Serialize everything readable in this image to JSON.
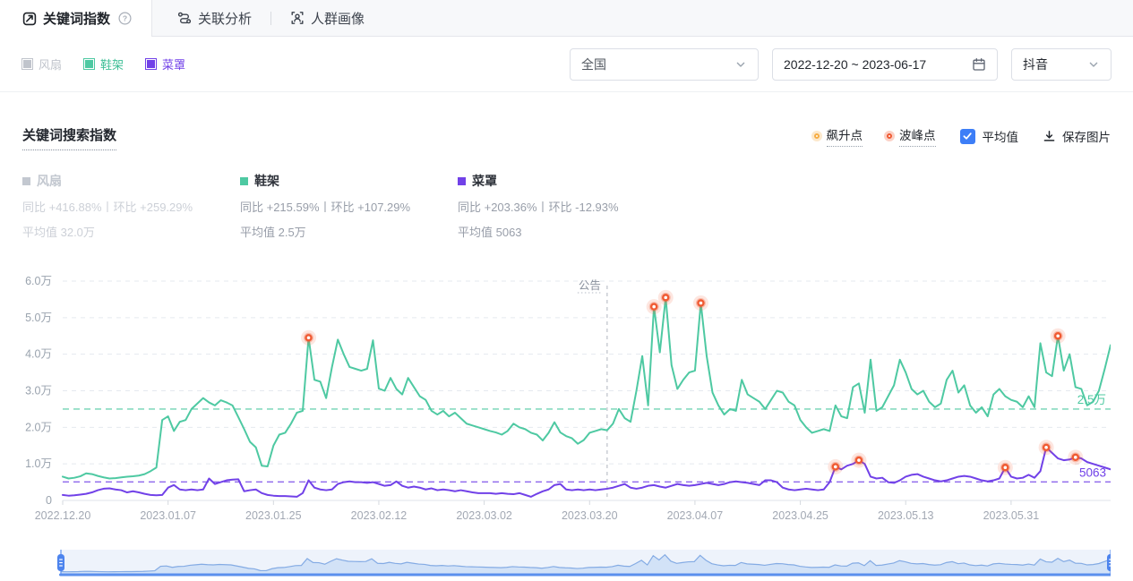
{
  "tabs": [
    {
      "label": "关键词指数",
      "icon": "trend-icon",
      "active": true,
      "has_help": true
    },
    {
      "label": "关联分析",
      "icon": "link-analysis-icon",
      "active": false
    },
    {
      "label": "人群画像",
      "icon": "audience-portrait-icon",
      "active": false
    }
  ],
  "filters": {
    "keywords": [
      {
        "label": "风扇",
        "swatch_color": "#c0c4cc",
        "text_color": "#c0c4cc",
        "disabled": true
      },
      {
        "label": "鞋架",
        "swatch_color": "#4ec9a2",
        "text_color": "#3fbf97",
        "disabled": false
      },
      {
        "label": "菜罩",
        "swatch_color": "#7141e8",
        "text_color": "#7141e8",
        "disabled": false
      }
    ],
    "region_select": {
      "value": "全国",
      "icon": "chevron-down-icon"
    },
    "date_range": {
      "value": "2022-12-20 ~ 2023-06-17",
      "icon": "calendar-icon"
    },
    "platform_select": {
      "value": "抖音",
      "icon": "chevron-down-icon"
    }
  },
  "chart_header": {
    "title": "关键词搜索指数",
    "surge_point_label": "飙升点",
    "peak_point_label": "波峰点",
    "average_label": "平均值",
    "average_checked": true,
    "save_image_label": "保存图片"
  },
  "stats": [
    {
      "name": "风扇",
      "compare": "同比 +416.88%丨环比 +259.29%",
      "avg": "平均值 32.0万",
      "color": "#c3c8d0",
      "line_color": "#ccd0d7",
      "muted": true
    },
    {
      "name": "鞋架",
      "compare": "同比 +215.59%丨环比 +107.29%",
      "avg": "平均值 2.5万",
      "color": "#4ec9a2",
      "name_color": "#2f333b",
      "line_color": "#989ea9",
      "muted": false
    },
    {
      "name": "菜罩",
      "compare": "同比 +203.36%丨环比 -12.93%",
      "avg": "平均值 5063",
      "color": "#7141e8",
      "name_color": "#2f333b",
      "line_color": "#989ea9",
      "muted": false
    }
  ],
  "chart_data": {
    "type": "line",
    "title": "关键词搜索指数",
    "unit": "万",
    "ylim": [
      0,
      6
    ],
    "grid": true,
    "legend_position": "top-right",
    "y_ticks": [
      "0",
      "1.0万",
      "2.0万",
      "3.0万",
      "4.0万",
      "5.0万",
      "6.0万"
    ],
    "x_tick_labels": [
      "2022.12.20",
      "2023.01.07",
      "2023.01.25",
      "2023.02.12",
      "2023.03.02",
      "2023.03.20",
      "2023.04.07",
      "2023.04.25",
      "2023.05.13",
      "2023.05.31"
    ],
    "x_tick_days": [
      0,
      18,
      36,
      54,
      72,
      90,
      108,
      126,
      144,
      162
    ],
    "start_date": "2022-12-20",
    "end_date": "2023-06-17",
    "days_total": 180,
    "annotation": {
      "label": "公告",
      "day": 93
    },
    "marker_colors": {
      "surge": "#f6ad44",
      "peak": "#f05a32"
    },
    "series": [
      {
        "name": "鞋架",
        "color": "#4ec9a2",
        "visible": true,
        "average": 2.5,
        "average_label": "2.5万",
        "surge_days": [],
        "peak_days": [
          42,
          101,
          103,
          109,
          170
        ],
        "values": [
          0.65,
          0.6,
          0.62,
          0.66,
          0.74,
          0.72,
          0.67,
          0.63,
          0.6,
          0.61,
          0.63,
          0.65,
          0.66,
          0.68,
          0.72,
          0.8,
          0.9,
          2.2,
          2.3,
          1.9,
          2.15,
          2.2,
          2.5,
          2.65,
          2.8,
          2.68,
          2.6,
          2.74,
          2.68,
          2.6,
          2.28,
          1.95,
          1.6,
          1.45,
          0.95,
          0.93,
          1.5,
          1.8,
          1.85,
          2.1,
          2.4,
          2.45,
          4.45,
          3.3,
          3.25,
          2.8,
          3.65,
          4.4,
          4.0,
          3.65,
          3.6,
          3.55,
          3.6,
          4.38,
          3.06,
          3.0,
          3.35,
          3.05,
          2.9,
          3.35,
          3.1,
          2.85,
          2.75,
          2.45,
          2.35,
          2.45,
          2.3,
          2.4,
          2.25,
          2.1,
          2.05,
          2.0,
          1.95,
          1.9,
          1.86,
          1.8,
          1.9,
          2.1,
          2.0,
          1.95,
          1.85,
          1.8,
          1.64,
          1.85,
          2.14,
          1.86,
          1.76,
          1.7,
          1.55,
          1.65,
          1.85,
          1.9,
          1.95,
          1.92,
          2.1,
          2.5,
          2.25,
          2.15,
          3.0,
          3.95,
          2.6,
          5.3,
          4.05,
          5.55,
          3.7,
          3.05,
          3.3,
          3.5,
          3.55,
          5.4,
          3.95,
          2.95,
          2.6,
          2.35,
          2.5,
          2.45,
          3.3,
          2.9,
          2.8,
          2.7,
          2.5,
          2.75,
          3.0,
          2.95,
          2.7,
          2.6,
          2.2,
          2.0,
          1.85,
          1.9,
          1.95,
          1.9,
          2.6,
          2.3,
          2.25,
          3.1,
          3.2,
          2.4,
          3.85,
          2.45,
          2.55,
          2.85,
          3.15,
          3.85,
          3.5,
          3.05,
          2.9,
          3.0,
          2.7,
          2.55,
          2.65,
          3.3,
          3.55,
          2.95,
          3.15,
          2.6,
          2.4,
          2.55,
          2.3,
          2.9,
          3.05,
          2.85,
          2.75,
          2.7,
          2.55,
          2.85,
          2.55,
          4.3,
          3.5,
          3.4,
          4.5,
          3.55,
          4.0,
          3.1,
          3.05,
          2.6,
          2.7,
          3.0,
          3.6,
          4.25
        ]
      },
      {
        "name": "菜罩",
        "color": "#7141e8",
        "visible": true,
        "average": 0.5063,
        "average_label": "5063",
        "surge_days": [],
        "peak_days": [
          132,
          136,
          161,
          168,
          173
        ],
        "values": [
          0.15,
          0.13,
          0.14,
          0.16,
          0.18,
          0.22,
          0.28,
          0.32,
          0.33,
          0.3,
          0.28,
          0.22,
          0.25,
          0.22,
          0.18,
          0.15,
          0.14,
          0.15,
          0.35,
          0.42,
          0.3,
          0.28,
          0.3,
          0.28,
          0.3,
          0.6,
          0.45,
          0.5,
          0.55,
          0.57,
          0.58,
          0.25,
          0.28,
          0.3,
          0.2,
          0.15,
          0.13,
          0.12,
          0.12,
          0.11,
          0.1,
          0.2,
          0.55,
          0.35,
          0.3,
          0.28,
          0.3,
          0.45,
          0.5,
          0.52,
          0.5,
          0.5,
          0.48,
          0.5,
          0.45,
          0.4,
          0.42,
          0.52,
          0.4,
          0.35,
          0.38,
          0.35,
          0.3,
          0.33,
          0.28,
          0.3,
          0.28,
          0.25,
          0.28,
          0.25,
          0.22,
          0.2,
          0.2,
          0.2,
          0.18,
          0.2,
          0.18,
          0.17,
          0.2,
          0.15,
          0.1,
          0.18,
          0.25,
          0.3,
          0.42,
          0.45,
          0.3,
          0.28,
          0.3,
          0.28,
          0.3,
          0.28,
          0.3,
          0.32,
          0.35,
          0.4,
          0.45,
          0.35,
          0.32,
          0.35,
          0.4,
          0.42,
          0.38,
          0.35,
          0.4,
          0.45,
          0.42,
          0.4,
          0.42,
          0.45,
          0.48,
          0.45,
          0.42,
          0.45,
          0.5,
          0.52,
          0.5,
          0.48,
          0.45,
          0.42,
          0.55,
          0.55,
          0.5,
          0.35,
          0.3,
          0.28,
          0.3,
          0.32,
          0.3,
          0.28,
          0.3,
          0.5,
          0.92,
          0.85,
          0.95,
          1.0,
          1.1,
          1.0,
          0.65,
          0.6,
          0.62,
          0.5,
          0.48,
          0.55,
          0.65,
          0.7,
          0.72,
          0.65,
          0.6,
          0.55,
          0.52,
          0.55,
          0.6,
          0.65,
          0.67,
          0.65,
          0.6,
          0.55,
          0.52,
          0.55,
          0.6,
          0.9,
          0.65,
          0.6,
          0.62,
          0.7,
          0.62,
          0.8,
          1.45,
          1.3,
          1.15,
          1.1,
          1.12,
          1.18,
          1.15,
          1.05,
          1.0,
          0.95,
          0.9,
          0.85
        ]
      },
      {
        "name": "风扇",
        "color": "#c0c4cc",
        "visible": false,
        "average": 32.0,
        "average_label": "32.0万",
        "surge_days": [],
        "peak_days": [],
        "values": []
      }
    ]
  },
  "brush": {
    "mirrors_series": "鞋架",
    "bar_color": "#4d84ee",
    "area_fill": "#d2e2f7",
    "area_stroke": "#84abe4",
    "panel_bg": "#eef3fb"
  }
}
